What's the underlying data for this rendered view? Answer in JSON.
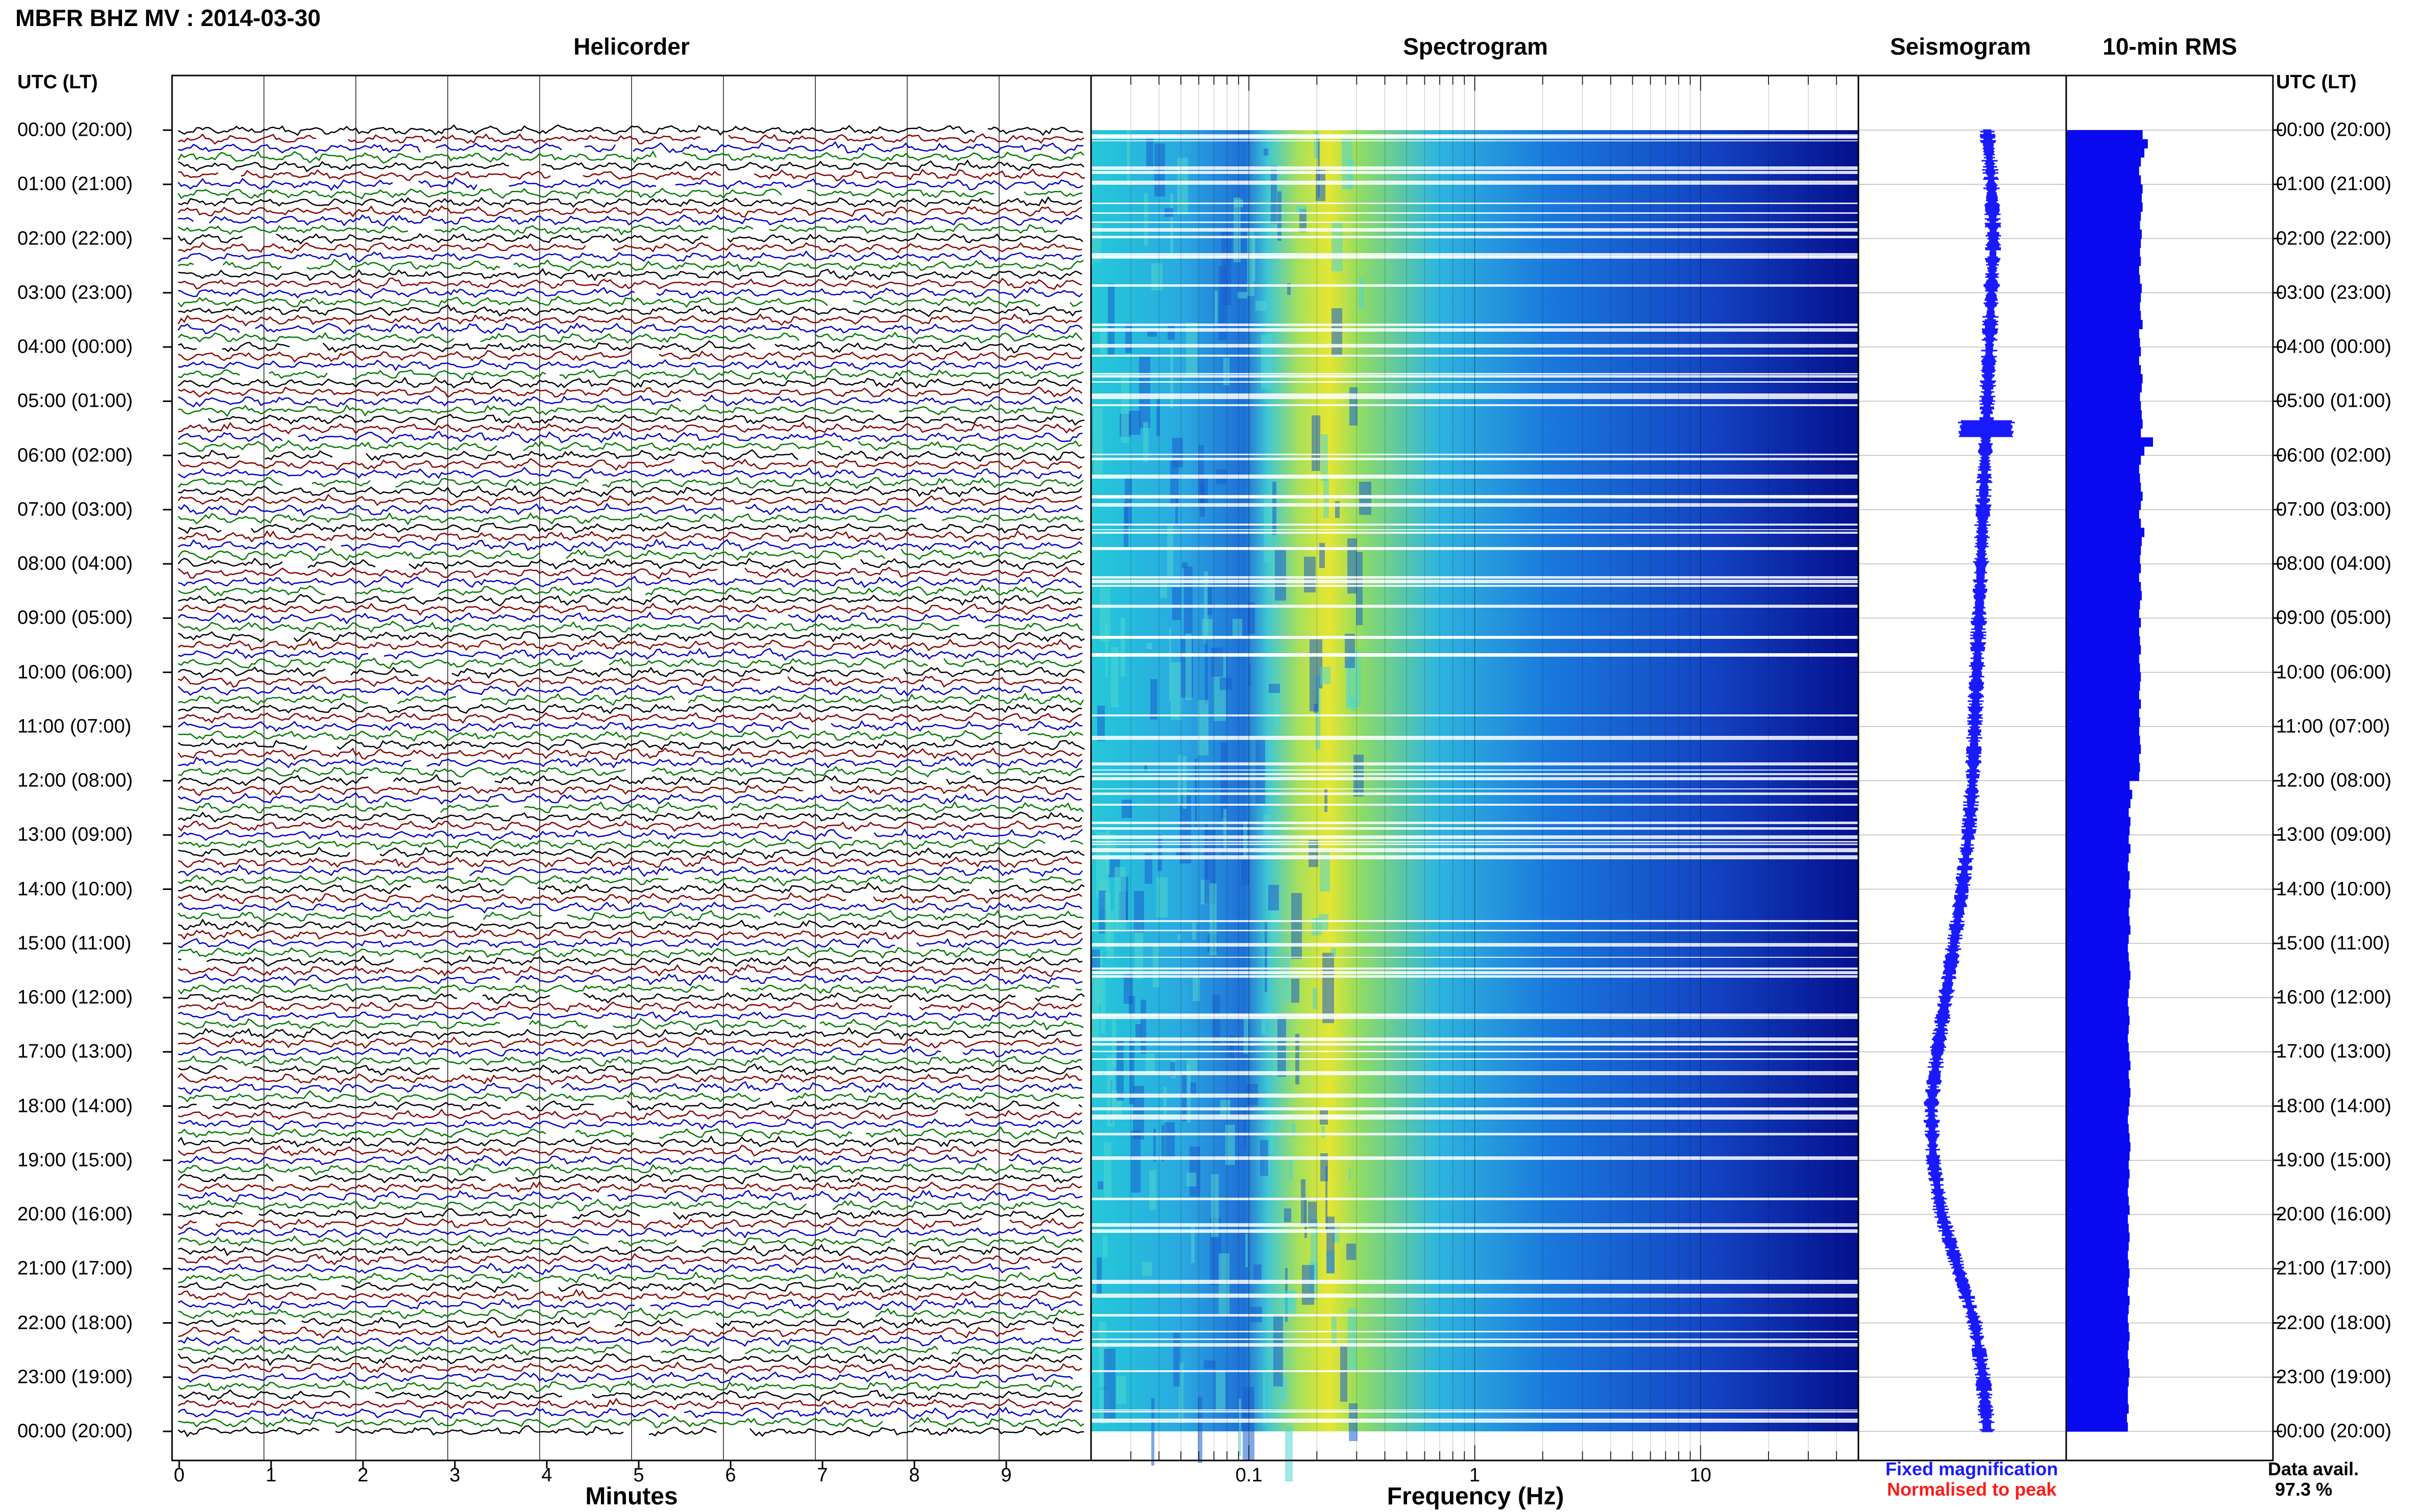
{
  "header": {
    "title": "MBFR BHZ MV : 2014-03-30"
  },
  "panels": {
    "helicorder": "Helicorder",
    "spectrogram": "Spectrogram",
    "seismogram": "Seismogram",
    "rms": "10-min RMS"
  },
  "time_axis": {
    "header_left": "UTC (LT)",
    "header_right": "UTC (LT)",
    "labels": [
      "00:00 (20:00)",
      "01:00 (21:00)",
      "02:00 (22:00)",
      "03:00 (23:00)",
      "04:00 (00:00)",
      "05:00 (01:00)",
      "06:00 (02:00)",
      "07:00 (03:00)",
      "08:00 (04:00)",
      "09:00 (05:00)",
      "10:00 (06:00)",
      "11:00 (07:00)",
      "12:00 (08:00)",
      "13:00 (09:00)",
      "14:00 (10:00)",
      "15:00 (11:00)",
      "16:00 (12:00)",
      "17:00 (13:00)",
      "18:00 (14:00)",
      "19:00 (15:00)",
      "20:00 (16:00)",
      "21:00 (17:00)",
      "22:00 (18:00)",
      "23:00 (19:00)",
      "00:00 (20:00)"
    ]
  },
  "helicorder_axis": {
    "label": "Minutes",
    "ticks": [
      "0",
      "1",
      "2",
      "3",
      "4",
      "5",
      "6",
      "7",
      "8",
      "9"
    ],
    "trace_colors": [
      "#000000",
      "#8b0000",
      "#0000cd",
      "#007a00"
    ]
  },
  "spectrogram_axis": {
    "label": "Frequency (Hz)",
    "ticks": [
      "0.1",
      "1",
      "10"
    ],
    "scale": "log",
    "colormap": [
      "#00008b",
      "#1a4fd6",
      "#1ea0e6",
      "#24d1d1",
      "#7ddc6a",
      "#e6e632"
    ]
  },
  "legend": {
    "fixed": "Fixed magnification",
    "fixed_color": "#1a1aff",
    "normalised": "Normalised to peak",
    "normalised_color": "#ff1a1a"
  },
  "data_avail": {
    "label": "Data avail.",
    "value": "97.3 %"
  },
  "chart_data": [
    {
      "type": "line",
      "name": "helicorder",
      "title": "Helicorder",
      "xlabel": "Minutes",
      "xlim": [
        0,
        10
      ],
      "rows_per_hour": 6,
      "hours": 24
    },
    {
      "type": "heatmap",
      "name": "spectrogram",
      "title": "Spectrogram",
      "xlabel": "Frequency (Hz)",
      "xscale": "log",
      "xlim": [
        0.02,
        50
      ],
      "peak_band_hz": [
        0.15,
        0.35
      ]
    },
    {
      "type": "line",
      "name": "seismogram",
      "title": "Seismogram",
      "x": [
        0,
        1,
        2,
        3,
        4,
        5,
        6,
        7,
        8,
        9,
        10,
        11,
        12,
        13,
        14,
        15,
        16,
        17,
        18,
        19,
        20,
        21,
        22,
        23,
        24
      ],
      "offset": [
        0.62,
        0.64,
        0.65,
        0.64,
        0.63,
        0.62,
        0.61,
        0.6,
        0.59,
        0.58,
        0.57,
        0.56,
        0.55,
        0.53,
        0.5,
        0.46,
        0.42,
        0.38,
        0.35,
        0.36,
        0.4,
        0.48,
        0.56,
        0.6,
        0.62
      ]
    },
    {
      "type": "bar",
      "name": "rms",
      "title": "10-min RMS",
      "orientation": "horizontal",
      "values": [
        0.88,
        0.94,
        0.9,
        0.86,
        0.84,
        0.86,
        0.88,
        0.87,
        0.88,
        0.86,
        0.85,
        0.87,
        0.86,
        0.85,
        0.86,
        0.84,
        0.85,
        0.87,
        0.86,
        0.85,
        0.86,
        0.88,
        0.84,
        0.85,
        0.86,
        0.84,
        0.86,
        0.88,
        0.87,
        0.85,
        0.86,
        0.87,
        0.88,
        0.86,
        1.0,
        0.9,
        0.86,
        0.84,
        0.85,
        0.86,
        0.88,
        0.86,
        0.84,
        0.86,
        0.9,
        0.87,
        0.86,
        0.85,
        0.86,
        0.84,
        0.86,
        0.87,
        0.85,
        0.84,
        0.86,
        0.84,
        0.85,
        0.86,
        0.84,
        0.85,
        0.86,
        0.85,
        0.84,
        0.86,
        0.84,
        0.85,
        0.84,
        0.85,
        0.86,
        0.84,
        0.85,
        0.84,
        0.73,
        0.76,
        0.74,
        0.72,
        0.74,
        0.73,
        0.72,
        0.74,
        0.72,
        0.71,
        0.73,
        0.72,
        0.74,
        0.73,
        0.72,
        0.73,
        0.74,
        0.72,
        0.71,
        0.72,
        0.73,
        0.74,
        0.73,
        0.72,
        0.71,
        0.72,
        0.73,
        0.72,
        0.71,
        0.72,
        0.73,
        0.74,
        0.72,
        0.73,
        0.74,
        0.73,
        0.72,
        0.71,
        0.72,
        0.73,
        0.74,
        0.73,
        0.72,
        0.73,
        0.72,
        0.71,
        0.72,
        0.73,
        0.71,
        0.72,
        0.73,
        0.72,
        0.71,
        0.72,
        0.73,
        0.72,
        0.71,
        0.73,
        0.72,
        0.71,
        0.72,
        0.73,
        0.72,
        0.71,
        0.72,
        0.73,
        0.72,
        0.71,
        0.71,
        0.72,
        0.7,
        0.71
      ]
    }
  ]
}
